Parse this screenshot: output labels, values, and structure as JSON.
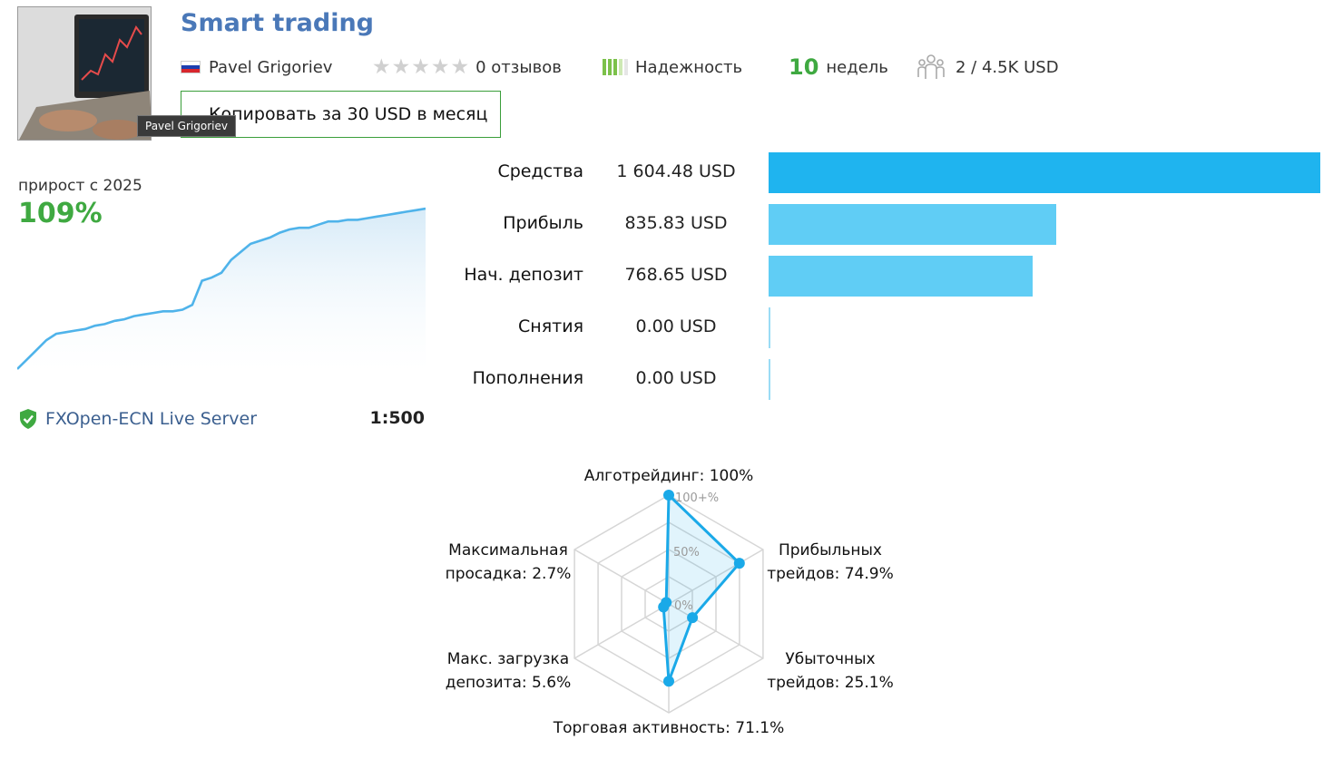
{
  "header": {
    "title": "Smart trading",
    "author_name": "Pavel Grigoriev",
    "reviews_text": "0 отзывов",
    "rating_stars": 0,
    "reliability_label": "Надежность",
    "reliability_level": 0.75,
    "weeks_number": "10",
    "weeks_label": "недель",
    "subscribers_text": "2 / 4.5K USD",
    "copy_button_label": "Копировать за 30 USD в месяц",
    "avatar_tooltip": "Pavel Grigoriev"
  },
  "growth": {
    "label": "прирост с 2025",
    "value": "109%",
    "curve": [
      0.0,
      0.06,
      0.12,
      0.18,
      0.22,
      0.23,
      0.24,
      0.25,
      0.27,
      0.28,
      0.3,
      0.31,
      0.33,
      0.34,
      0.35,
      0.36,
      0.36,
      0.37,
      0.4,
      0.55,
      0.57,
      0.6,
      0.68,
      0.73,
      0.78,
      0.8,
      0.82,
      0.85,
      0.87,
      0.88,
      0.88,
      0.9,
      0.92,
      0.92,
      0.93,
      0.93,
      0.94,
      0.95,
      0.96,
      0.97,
      0.98,
      0.99,
      1.0
    ]
  },
  "account": {
    "server": "FXOpen-ECN Live Server",
    "leverage": "1:500"
  },
  "finance": {
    "rows": [
      {
        "label": "Средства",
        "value": "1 604.48 USD",
        "amount": 1604.48
      },
      {
        "label": "Прибыль",
        "value": "835.83 USD",
        "amount": 835.83
      },
      {
        "label": "Нач. депозит",
        "value": "768.65 USD",
        "amount": 768.65
      },
      {
        "label": "Снятия",
        "value": "0.00 USD",
        "amount": 0
      },
      {
        "label": "Пополнения",
        "value": "0.00 USD",
        "amount": 0
      }
    ],
    "colors": [
      "#1fb4ef",
      "#60cdf5",
      "#60cdf5",
      "#9adcf5",
      "#9adcf5"
    ]
  },
  "radar": {
    "ticks": [
      "100+%",
      "50%",
      "0%"
    ],
    "axes": [
      {
        "label_line1": "Алготрейдинг: 100%",
        "label_line2": "",
        "value": 100
      },
      {
        "label_line1": "Прибыльных",
        "label_line2": "трейдов: 74.9%",
        "value": 74.9
      },
      {
        "label_line1": "Убыточных",
        "label_line2": "трейдов: 25.1%",
        "value": 25.1
      },
      {
        "label_line1": "Торговая активность: 71.1%",
        "label_line2": "",
        "value": 71.1
      },
      {
        "label_line1": "Макс. загрузка",
        "label_line2": "депозита: 5.6%",
        "value": 5.6
      },
      {
        "label_line1": "Максимальная",
        "label_line2": "просадка: 2.7%",
        "value": 2.7
      }
    ],
    "color": "#1aa9e8"
  }
}
